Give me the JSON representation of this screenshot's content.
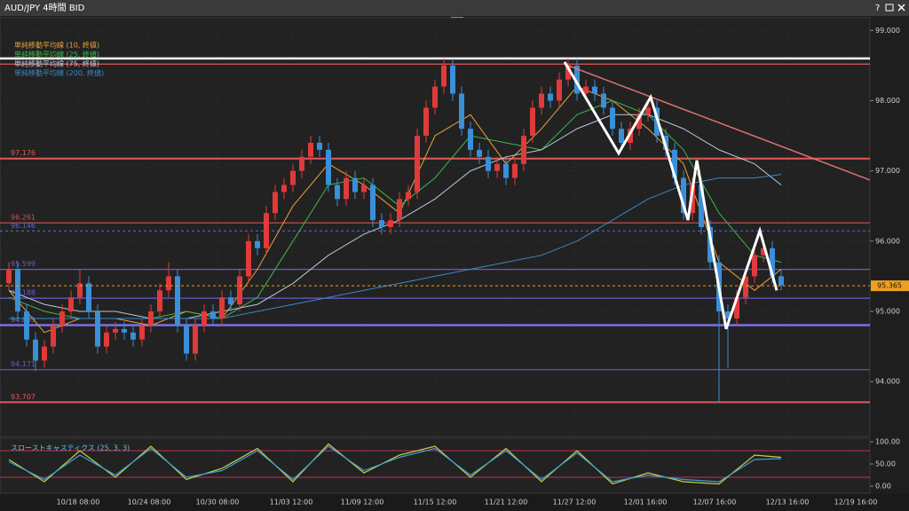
{
  "chart_data": [
    {
      "type": "candlestick",
      "title": "AUD/JPY 4時間 BID",
      "help": "?",
      "up_color": "#e03a3a",
      "down_color": "#3a8fd8",
      "xlim": [
        -1,
        97
      ],
      "ylim": [
        93.22,
        99.18
      ],
      "grid": true,
      "xticks": [
        {
          "value": 7.8,
          "label": "10/18 08:00"
        },
        {
          "value": 15.8,
          "label": "10/24 08:00"
        },
        {
          "value": 23.5,
          "label": "10/30 08:00"
        },
        {
          "value": 31.8,
          "label": "11/03 12:00"
        },
        {
          "value": 39.8,
          "label": "11/09 12:00"
        },
        {
          "value": 48,
          "label": "11/15 12:00"
        },
        {
          "value": 56,
          "label": "11/21 12:00"
        },
        {
          "value": 63.7,
          "label": "11/27 12:00"
        },
        {
          "value": 71.7,
          "label": "12/01 16:00"
        },
        {
          "value": 79.5,
          "label": "12/07 16:00"
        },
        {
          "value": 87.7,
          "label": "12/13 16:00"
        },
        {
          "value": 95.4,
          "label": "12/19 16:00"
        }
      ],
      "yticks": [
        {
          "value": 94,
          "label": "94.000"
        },
        {
          "value": 95,
          "label": "95.000"
        },
        {
          "value": 96,
          "label": "96.000"
        },
        {
          "value": 97,
          "label": "97.000"
        },
        {
          "value": 98,
          "label": "98.000"
        },
        {
          "value": 99,
          "label": "99.000"
        }
      ],
      "open": [
        95.4,
        95.6,
        95.0,
        94.6,
        94.3,
        94.5,
        94.8,
        95.0,
        95.2,
        95.4,
        95.0,
        94.5,
        94.7,
        94.75,
        94.7,
        94.6,
        94.8,
        95.0,
        95.3,
        95.5,
        94.8,
        94.4,
        94.8,
        95.0,
        94.9,
        95.2,
        95.1,
        95.5,
        96.0,
        95.9,
        96.4,
        96.7,
        96.8,
        97.0,
        97.2,
        97.4,
        97.3,
        96.8,
        96.6,
        96.9,
        96.7,
        96.8,
        96.3,
        96.2,
        96.3,
        96.6,
        96.7,
        97.5,
        97.9,
        98.2,
        98.5,
        98.1,
        97.6,
        97.3,
        97.2,
        97.0,
        97.1,
        96.9,
        97.1,
        97.5,
        97.9,
        98.1,
        98.0,
        98.3,
        98.5,
        98.1,
        98.2,
        98.1,
        97.9,
        97.6,
        97.4,
        97.6,
        97.8,
        97.9,
        97.5,
        97.3,
        96.9,
        96.4,
        96.8,
        96.2,
        95.7,
        95.0,
        94.9,
        95.2,
        95.5,
        95.8,
        95.9,
        95.5
      ],
      "high": [
        95.7,
        95.7,
        95.1,
        94.7,
        94.6,
        94.9,
        95.1,
        95.3,
        95.6,
        95.5,
        95.1,
        94.8,
        94.85,
        94.85,
        94.8,
        94.9,
        95.1,
        95.4,
        95.7,
        95.6,
        94.9,
        94.9,
        95.1,
        95.1,
        95.3,
        95.3,
        95.6,
        96.1,
        96.1,
        96.5,
        96.8,
        96.9,
        97.1,
        97.3,
        97.5,
        97.5,
        97.4,
        96.9,
        97.0,
        97.0,
        96.9,
        96.9,
        96.4,
        96.4,
        96.7,
        96.8,
        97.6,
        98.0,
        98.3,
        98.6,
        98.6,
        98.2,
        97.7,
        97.4,
        97.3,
        97.2,
        97.2,
        97.2,
        97.6,
        98.0,
        98.2,
        98.2,
        98.4,
        98.6,
        98.6,
        98.3,
        98.3,
        98.2,
        98.0,
        97.7,
        97.7,
        97.9,
        98.0,
        98.0,
        97.6,
        97.4,
        97.0,
        96.9,
        96.9,
        96.3,
        95.8,
        95.1,
        95.3,
        95.6,
        95.9,
        96.0,
        96.0,
        95.6
      ],
      "low": [
        95.3,
        94.9,
        94.5,
        94.15,
        94.2,
        94.4,
        94.7,
        94.9,
        95.1,
        94.9,
        94.4,
        94.4,
        94.6,
        94.6,
        94.5,
        94.5,
        94.7,
        94.9,
        95.2,
        94.7,
        94.3,
        94.3,
        94.7,
        94.8,
        94.8,
        95.0,
        95.0,
        95.4,
        95.8,
        95.8,
        96.3,
        96.6,
        96.7,
        96.9,
        97.1,
        97.2,
        96.7,
        96.5,
        96.5,
        96.6,
        96.6,
        96.2,
        96.1,
        96.1,
        96.2,
        96.5,
        96.6,
        97.4,
        97.8,
        98.1,
        98.0,
        97.5,
        97.2,
        97.1,
        96.9,
        96.9,
        96.8,
        96.8,
        97.0,
        97.4,
        97.8,
        97.9,
        97.9,
        98.2,
        98.0,
        98.0,
        98.0,
        97.8,
        97.5,
        97.3,
        97.3,
        97.5,
        97.7,
        97.4,
        97.2,
        96.8,
        96.3,
        96.3,
        96.1,
        95.6,
        93.7,
        94.2,
        94.8,
        95.1,
        95.4,
        95.7,
        95.4,
        95.3
      ],
      "close": [
        95.6,
        95.0,
        94.6,
        94.3,
        94.5,
        94.8,
        95.0,
        95.2,
        95.4,
        95.0,
        94.5,
        94.7,
        94.75,
        94.7,
        94.6,
        94.8,
        95.0,
        95.3,
        95.5,
        94.8,
        94.4,
        94.8,
        95.0,
        94.9,
        95.2,
        95.1,
        95.5,
        96.0,
        95.9,
        96.4,
        96.7,
        96.8,
        97.0,
        97.2,
        97.4,
        97.3,
        96.8,
        96.6,
        96.9,
        96.7,
        96.8,
        96.3,
        96.2,
        96.3,
        96.6,
        96.7,
        97.5,
        97.9,
        98.2,
        98.5,
        98.1,
        97.6,
        97.3,
        97.2,
        97.0,
        97.1,
        96.9,
        97.1,
        97.5,
        97.9,
        98.1,
        98.0,
        98.3,
        98.5,
        98.1,
        98.2,
        98.1,
        97.9,
        97.6,
        97.4,
        97.6,
        97.8,
        97.9,
        97.5,
        97.3,
        96.9,
        96.4,
        96.8,
        96.2,
        95.7,
        95.0,
        94.9,
        95.2,
        95.5,
        95.8,
        95.9,
        95.5,
        95.37
      ],
      "series": [
        {
          "name": "単純移動平均線 (10, 終値)",
          "color": "#e8a23a",
          "x": [
            0,
            4,
            8,
            12,
            16,
            20,
            24,
            28,
            32,
            36,
            40,
            44,
            48,
            52,
            56,
            60,
            64,
            68,
            72,
            76,
            80,
            84,
            87
          ],
          "values": [
            95.3,
            94.7,
            94.9,
            94.9,
            94.8,
            95.0,
            94.9,
            95.6,
            96.5,
            97.1,
            96.8,
            96.4,
            97.5,
            97.8,
            97.1,
            97.6,
            98.2,
            98.0,
            97.6,
            97.1,
            95.7,
            95.3,
            95.6
          ]
        },
        {
          "name": "単純移動平均線 (25, 終値)",
          "color": "#3cb84a",
          "x": [
            0,
            4,
            8,
            12,
            16,
            20,
            24,
            28,
            32,
            36,
            40,
            44,
            48,
            52,
            56,
            60,
            64,
            68,
            72,
            76,
            80,
            84,
            87
          ],
          "values": [
            95.2,
            95.0,
            94.9,
            94.9,
            94.9,
            95.0,
            94.9,
            95.2,
            96.0,
            96.8,
            96.9,
            96.5,
            96.9,
            97.5,
            97.4,
            97.3,
            97.8,
            98.0,
            97.8,
            97.3,
            96.4,
            95.8,
            95.7
          ]
        },
        {
          "name": "単純移動平均線 (75, 終値)",
          "color": "#b8c8d8",
          "x": [
            0,
            4,
            8,
            12,
            16,
            20,
            24,
            28,
            32,
            36,
            40,
            44,
            48,
            52,
            56,
            60,
            64,
            68,
            72,
            76,
            80,
            84,
            87
          ],
          "values": [
            95.3,
            95.1,
            95.0,
            95.0,
            94.9,
            94.9,
            95.0,
            95.1,
            95.4,
            95.8,
            96.1,
            96.3,
            96.6,
            97.0,
            97.2,
            97.3,
            97.6,
            97.8,
            97.8,
            97.6,
            97.3,
            97.1,
            96.8
          ]
        },
        {
          "name": "単純移動平均線 (200, 終値)",
          "color": "#3a88c8",
          "x": [
            0,
            4,
            8,
            12,
            16,
            20,
            24,
            28,
            32,
            36,
            40,
            44,
            48,
            52,
            56,
            60,
            64,
            68,
            72,
            76,
            80,
            84,
            87
          ],
          "values": [
            94.9,
            94.9,
            94.9,
            94.9,
            94.9,
            94.9,
            94.9,
            95.0,
            95.1,
            95.2,
            95.3,
            95.4,
            95.5,
            95.6,
            95.7,
            95.8,
            96.0,
            96.3,
            96.6,
            96.8,
            96.9,
            96.9,
            96.95
          ]
        }
      ],
      "lines": [
        {
          "value": 98.6,
          "color": "#ffffff",
          "width": 2.5
        },
        {
          "value": 98.52,
          "color": "#e05a5a",
          "width": 1.2
        }
      ],
      "levels": [
        {
          "value": 97.176,
          "color": "#e05a5a",
          "width": 2
        },
        {
          "value": 96.261,
          "color": "#d05050",
          "width": 1.2
        },
        {
          "value": 96.146,
          "color": "#5a6ad8",
          "width": 1,
          "dashed": true
        },
        {
          "value": 95.599,
          "color": "#6a5ad0",
          "width": 1.2
        },
        {
          "value": 95.188,
          "color": "#6a5ad0",
          "width": 1.2
        },
        {
          "value": 94.805,
          "color": "#7a70e8",
          "width": 2.5
        },
        {
          "value": 94.171,
          "color": "#6a5ad0",
          "width": 1.2
        },
        {
          "value": 93.707,
          "color": "#e05a5a",
          "width": 2
        }
      ],
      "current_price": {
        "value": 95.365,
        "color": "#f0a020"
      },
      "trendline": {
        "color": "#e07070",
        "x": [
          62.6,
          97
        ],
        "y": [
          98.52,
          96.87
        ]
      },
      "zigzag": {
        "color": "#ffffff",
        "x": [
          62.6,
          68.7,
          72.3,
          76.5,
          77.5,
          80.8,
          84.6,
          86.5
        ],
        "y": [
          98.55,
          97.25,
          98.05,
          96.3,
          97.15,
          94.75,
          96.15,
          95.3
        ]
      }
    },
    {
      "type": "line",
      "title": "スローストキャスティクス (25, 3, 3)",
      "xlim": [
        -1,
        97
      ],
      "ylim": [
        -16,
        108
      ],
      "yticks": [
        {
          "value": 0,
          "label": "0.00"
        },
        {
          "value": 50,
          "label": "50.00"
        },
        {
          "value": 100,
          "label": "100.00"
        }
      ],
      "levels": [
        {
          "value": 80,
          "color": "#c0305a",
          "width": 1
        },
        {
          "value": 20,
          "color": "#c0305a",
          "width": 1
        }
      ],
      "series": [
        {
          "color": "#c8d040",
          "x": [
            0,
            4,
            8,
            12,
            16,
            20,
            24,
            28,
            32,
            36,
            40,
            44,
            48,
            52,
            56,
            60,
            64,
            68,
            72,
            76,
            80,
            84,
            87
          ],
          "values": [
            60,
            10,
            80,
            20,
            90,
            15,
            40,
            85,
            10,
            95,
            30,
            70,
            90,
            20,
            85,
            10,
            80,
            5,
            30,
            10,
            5,
            70,
            65
          ]
        },
        {
          "color": "#3aa0d8",
          "x": [
            0,
            4,
            8,
            12,
            16,
            20,
            24,
            28,
            32,
            36,
            40,
            44,
            48,
            52,
            56,
            60,
            64,
            68,
            72,
            76,
            80,
            84,
            87
          ],
          "values": [
            55,
            15,
            70,
            25,
            85,
            20,
            35,
            80,
            15,
            90,
            35,
            65,
            85,
            25,
            80,
            15,
            75,
            10,
            25,
            15,
            10,
            60,
            62
          ]
        }
      ]
    }
  ]
}
